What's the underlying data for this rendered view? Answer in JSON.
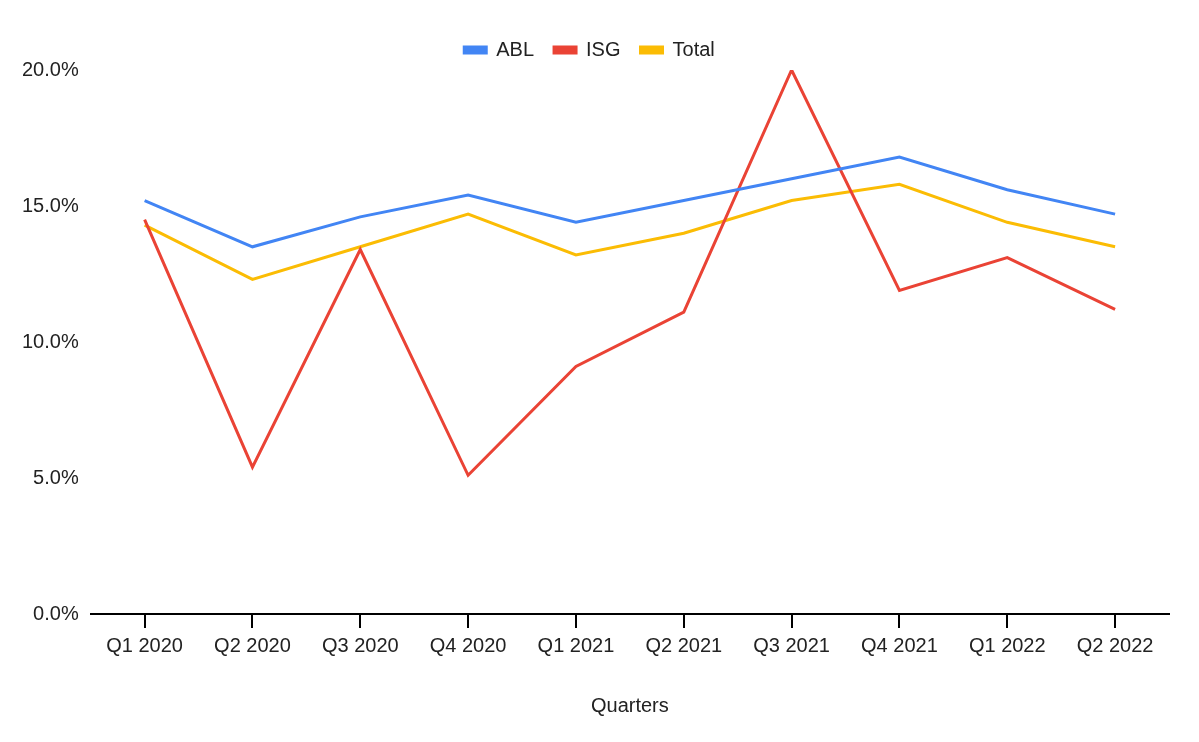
{
  "chart_data": {
    "type": "line",
    "x_label": "Quarters",
    "categories": [
      "Q1 2020",
      "Q2 2020",
      "Q3 2020",
      "Q4 2020",
      "Q1 2021",
      "Q2 2021",
      "Q3 2021",
      "Q4 2021",
      "Q1 2022",
      "Q2 2022"
    ],
    "series": [
      {
        "name": "ABL",
        "color": "#4285f4",
        "values": [
          15.2,
          13.5,
          14.6,
          15.4,
          14.4,
          15.2,
          16.0,
          16.8,
          15.6,
          14.7
        ]
      },
      {
        "name": "ISG",
        "color": "#ea4335",
        "values": [
          14.5,
          5.4,
          13.4,
          5.1,
          9.1,
          11.1,
          20.0,
          11.9,
          13.1,
          11.2
        ]
      },
      {
        "name": "Total",
        "color": "#fbbc04",
        "values": [
          14.3,
          12.3,
          13.5,
          14.7,
          13.2,
          14.0,
          15.2,
          15.8,
          14.4,
          13.5
        ]
      }
    ],
    "ylim": [
      0,
      20
    ],
    "yticks": [
      {
        "value": 0,
        "label": "0.0%"
      },
      {
        "value": 5,
        "label": "5.0%"
      },
      {
        "value": 10,
        "label": "10.0%"
      },
      {
        "value": 15,
        "label": "15.0%"
      },
      {
        "value": 20,
        "label": "20.0%"
      }
    ],
    "grid": false,
    "legend": "top"
  }
}
